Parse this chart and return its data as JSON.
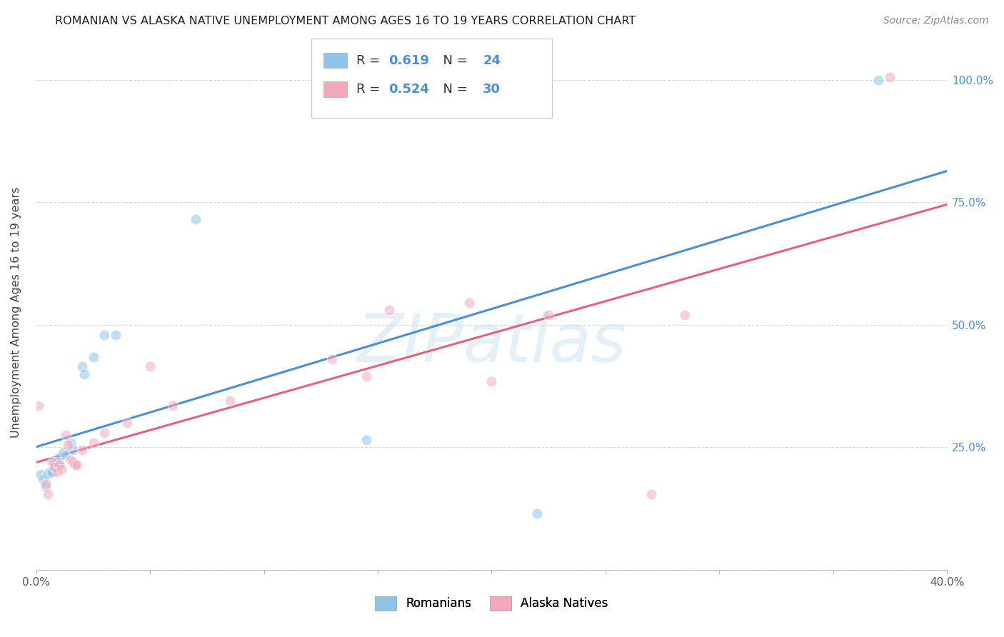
{
  "title": "ROMANIAN VS ALASKA NATIVE UNEMPLOYMENT AMONG AGES 16 TO 19 YEARS CORRELATION CHART",
  "source": "Source: ZipAtlas.com",
  "ylabel": "Unemployment Among Ages 16 to 19 years",
  "xlim": [
    0.0,
    0.4
  ],
  "ylim": [
    0.0,
    1.05
  ],
  "romanian_color": "#8ec4e8",
  "alaska_color": "#f4a8bc",
  "romanian_line_color": "#4a90d9",
  "alaska_line_color": "#e8607a",
  "R_romanian": 0.619,
  "N_romanian": 24,
  "R_alaska": 0.524,
  "N_alaska": 30,
  "romanians_scatter": [
    [
      0.002,
      0.195
    ],
    [
      0.003,
      0.185
    ],
    [
      0.004,
      0.17
    ],
    [
      0.005,
      0.195
    ],
    [
      0.006,
      0.2
    ],
    [
      0.007,
      0.2
    ],
    [
      0.008,
      0.21
    ],
    [
      0.008,
      0.22
    ],
    [
      0.009,
      0.22
    ],
    [
      0.01,
      0.215
    ],
    [
      0.01,
      0.23
    ],
    [
      0.012,
      0.24
    ],
    [
      0.013,
      0.235
    ],
    [
      0.015,
      0.26
    ],
    [
      0.016,
      0.245
    ],
    [
      0.02,
      0.415
    ],
    [
      0.021,
      0.4
    ],
    [
      0.025,
      0.435
    ],
    [
      0.03,
      0.48
    ],
    [
      0.035,
      0.48
    ],
    [
      0.07,
      0.715
    ],
    [
      0.145,
      0.265
    ],
    [
      0.22,
      0.115
    ],
    [
      0.37,
      1.0
    ]
  ],
  "alaska_scatter": [
    [
      0.001,
      0.335
    ],
    [
      0.004,
      0.175
    ],
    [
      0.005,
      0.155
    ],
    [
      0.007,
      0.22
    ],
    [
      0.008,
      0.21
    ],
    [
      0.009,
      0.2
    ],
    [
      0.01,
      0.215
    ],
    [
      0.011,
      0.205
    ],
    [
      0.013,
      0.275
    ],
    [
      0.014,
      0.255
    ],
    [
      0.015,
      0.225
    ],
    [
      0.016,
      0.22
    ],
    [
      0.017,
      0.215
    ],
    [
      0.018,
      0.215
    ],
    [
      0.02,
      0.245
    ],
    [
      0.025,
      0.26
    ],
    [
      0.03,
      0.28
    ],
    [
      0.04,
      0.3
    ],
    [
      0.05,
      0.415
    ],
    [
      0.06,
      0.335
    ],
    [
      0.085,
      0.345
    ],
    [
      0.13,
      0.43
    ],
    [
      0.145,
      0.395
    ],
    [
      0.155,
      0.53
    ],
    [
      0.19,
      0.545
    ],
    [
      0.2,
      0.385
    ],
    [
      0.225,
      0.52
    ],
    [
      0.27,
      0.155
    ],
    [
      0.285,
      0.52
    ],
    [
      0.375,
      1.005
    ]
  ],
  "xticks": [
    0.0,
    0.05,
    0.1,
    0.15,
    0.2,
    0.25,
    0.3,
    0.35,
    0.4
  ],
  "ytick_right_values": [
    0.0,
    0.25,
    0.5,
    0.75,
    1.0
  ],
  "ytick_right_labels": [
    "",
    "25.0%",
    "50.0%",
    "75.0%",
    "100.0%"
  ],
  "background_color": "#ffffff",
  "grid_color": "#d8d8d8",
  "marker_size": 110,
  "marker_alpha": 0.55,
  "watermark_text": "ZIPatlas",
  "watermark_color": "#c5dff0",
  "watermark_alpha": 0.45,
  "watermark_fontsize": 68
}
